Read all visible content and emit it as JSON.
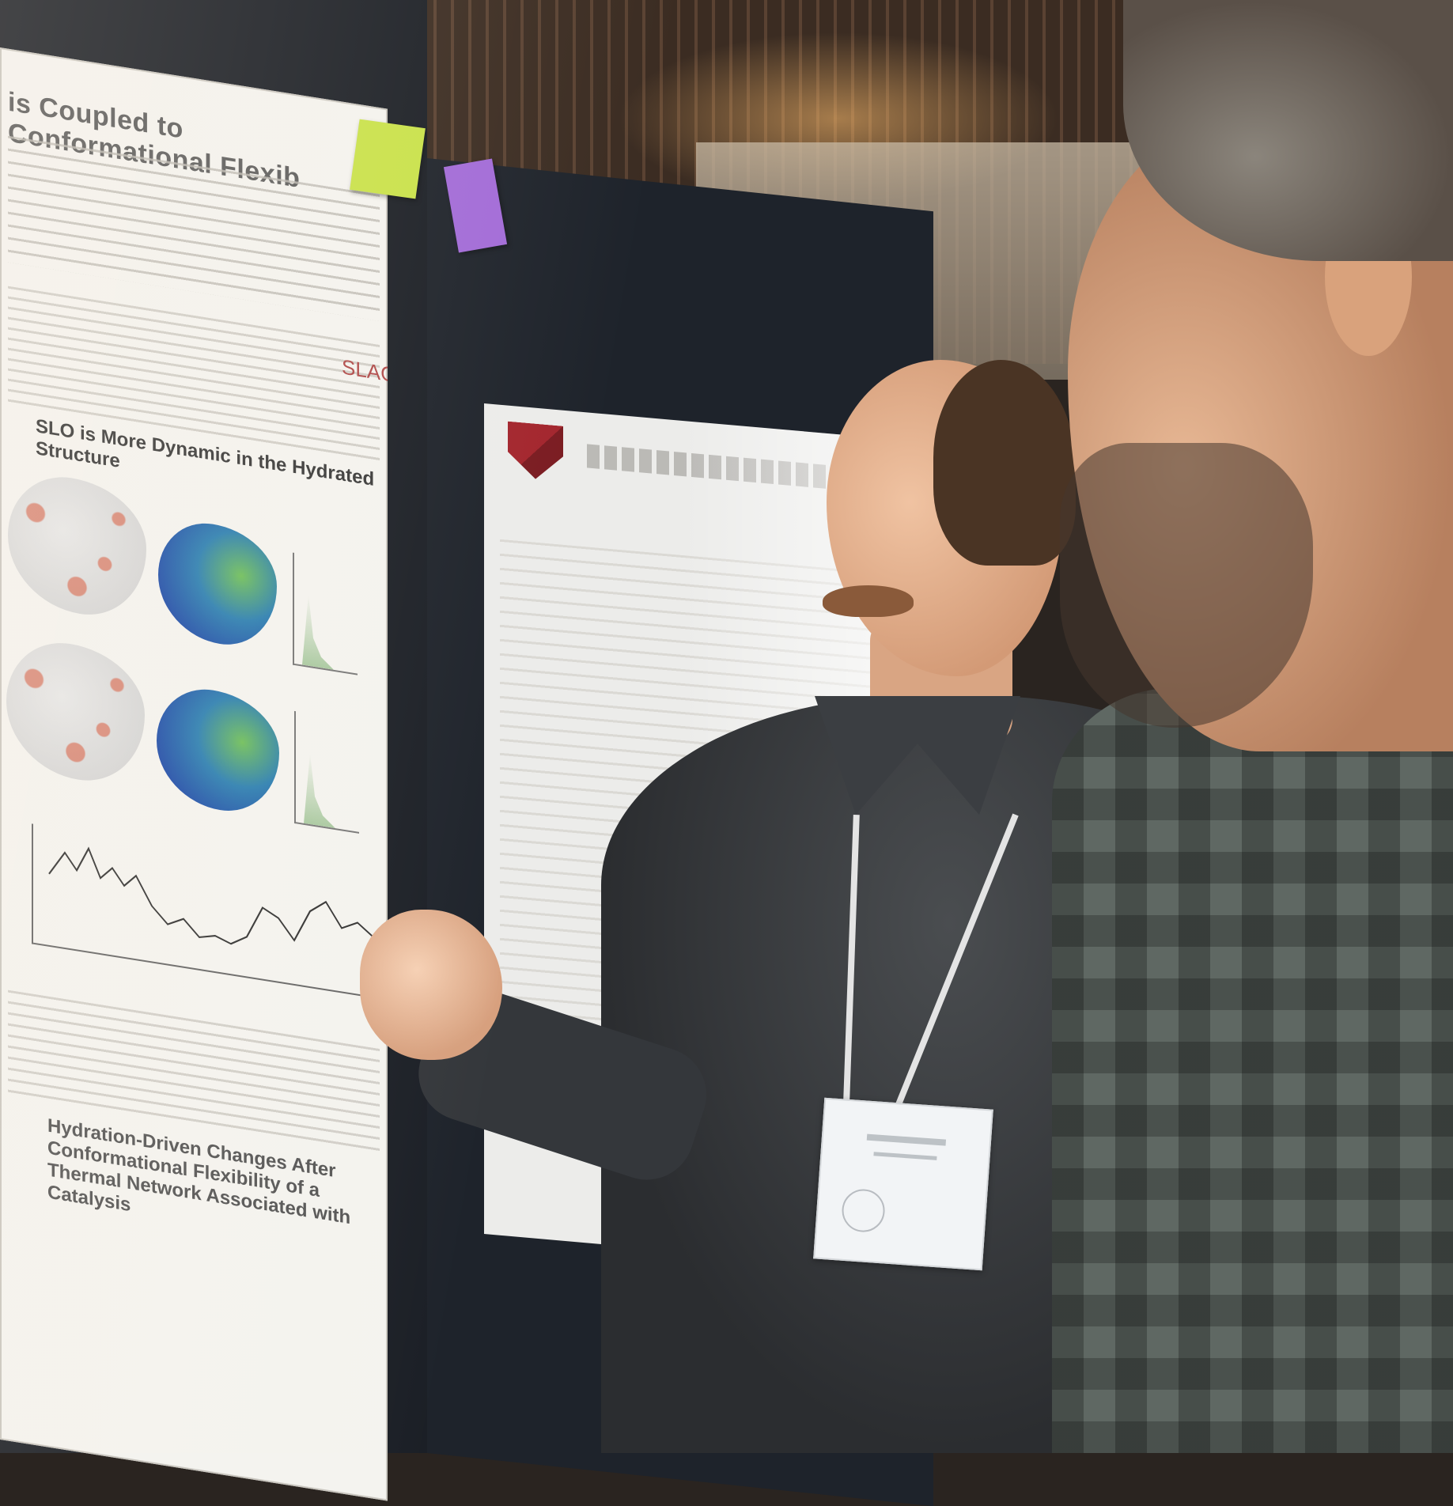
{
  "scene": {
    "description": ""
  },
  "poster_left": {
    "title": "is Coupled to Conformational Flexib",
    "logo_text": "SLAC",
    "section_title": "SLO is More Dynamic in the Hydrated Structure",
    "section_title_2": "Hydration-Driven Changes After Conformational Flexibility of a Thermal Network Associated with Catalysis"
  },
  "colors": {
    "sticky_note_1": "#c9e24a",
    "sticky_note_2": "#a26bd8",
    "logo_red": "#b04a4a"
  }
}
